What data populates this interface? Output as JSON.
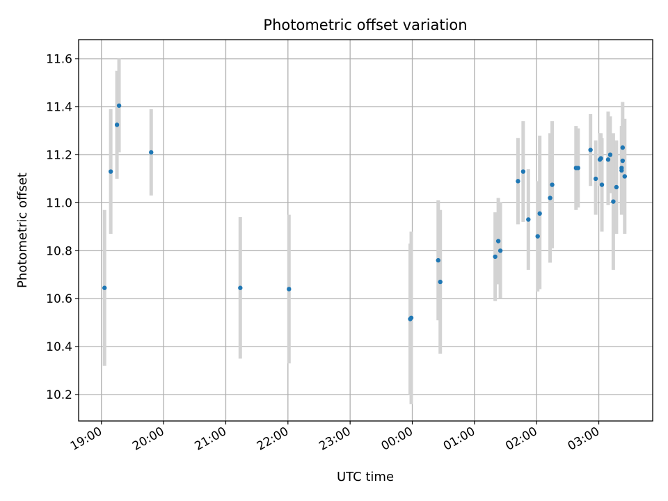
{
  "chart_data": {
    "type": "scatter",
    "title": "Photometric offset variation",
    "xlabel": "UTC time",
    "ylabel": "Photometric offset",
    "x_axis": "time",
    "x_range": [
      "18:38",
      "03:52"
    ],
    "ylim": [
      10.09,
      11.68
    ],
    "x_ticks": [
      "19:00",
      "20:00",
      "21:00",
      "22:00",
      "23:00",
      "00:00",
      "01:00",
      "02:00",
      "03:00"
    ],
    "y_ticks": [
      "10.2",
      "10.4",
      "10.6",
      "10.8",
      "11.0",
      "11.2",
      "11.4",
      "11.6"
    ],
    "grid": true,
    "colors": {
      "marker": "#1f77b4",
      "error_bar": "#d3d3d3",
      "grid": "#b0b0b0"
    },
    "points": [
      {
        "t": "19:03",
        "y": 10.645,
        "lo": 10.32,
        "hi": 10.97
      },
      {
        "t": "19:09",
        "y": 11.13,
        "lo": 10.87,
        "hi": 11.39
      },
      {
        "t": "19:15",
        "y": 11.325,
        "lo": 11.1,
        "hi": 11.55
      },
      {
        "t": "19:17",
        "y": 11.405,
        "lo": 11.21,
        "hi": 11.6
      },
      {
        "t": "19:48",
        "y": 11.21,
        "lo": 11.03,
        "hi": 11.39
      },
      {
        "t": "21:14",
        "y": 10.645,
        "lo": 10.35,
        "hi": 10.94
      },
      {
        "t": "22:01",
        "y": 10.64,
        "lo": 10.33,
        "hi": 10.95
      },
      {
        "t": "23:58",
        "y": 10.515,
        "lo": 10.2,
        "hi": 10.83
      },
      {
        "t": "23:59",
        "y": 10.52,
        "lo": 10.16,
        "hi": 10.88
      },
      {
        "t": "00:25",
        "y": 10.76,
        "lo": 10.51,
        "hi": 11.01
      },
      {
        "t": "00:27",
        "y": 10.67,
        "lo": 10.37,
        "hi": 10.97
      },
      {
        "t": "01:20",
        "y": 10.775,
        "lo": 10.59,
        "hi": 10.96
      },
      {
        "t": "01:23",
        "y": 10.84,
        "lo": 10.66,
        "hi": 11.02
      },
      {
        "t": "01:25",
        "y": 10.8,
        "lo": 10.6,
        "hi": 11.0
      },
      {
        "t": "01:42",
        "y": 11.09,
        "lo": 10.91,
        "hi": 11.27
      },
      {
        "t": "01:47",
        "y": 11.13,
        "lo": 10.92,
        "hi": 11.34
      },
      {
        "t": "01:52",
        "y": 10.93,
        "lo": 10.72,
        "hi": 11.14
      },
      {
        "t": "02:01",
        "y": 10.86,
        "lo": 10.63,
        "hi": 11.09
      },
      {
        "t": "02:03",
        "y": 10.955,
        "lo": 10.64,
        "hi": 11.28
      },
      {
        "t": "02:13",
        "y": 11.02,
        "lo": 10.75,
        "hi": 11.29
      },
      {
        "t": "02:15",
        "y": 11.075,
        "lo": 10.81,
        "hi": 11.34
      },
      {
        "t": "02:38",
        "y": 11.145,
        "lo": 10.97,
        "hi": 11.32
      },
      {
        "t": "02:40",
        "y": 11.145,
        "lo": 10.98,
        "hi": 11.31
      },
      {
        "t": "02:52",
        "y": 11.22,
        "lo": 11.07,
        "hi": 11.37
      },
      {
        "t": "02:57",
        "y": 11.1,
        "lo": 10.95,
        "hi": 11.26
      },
      {
        "t": "03:01",
        "y": 11.18,
        "lo": 11.07,
        "hi": 11.29
      },
      {
        "t": "03:02",
        "y": 11.185,
        "lo": 11.08,
        "hi": 11.29
      },
      {
        "t": "03:03",
        "y": 11.075,
        "lo": 10.88,
        "hi": 11.27
      },
      {
        "t": "03:09",
        "y": 11.18,
        "lo": 10.99,
        "hi": 11.38
      },
      {
        "t": "03:11",
        "y": 11.2,
        "lo": 11.04,
        "hi": 11.36
      },
      {
        "t": "03:14",
        "y": 11.005,
        "lo": 10.72,
        "hi": 11.29
      },
      {
        "t": "03:17",
        "y": 11.065,
        "lo": 10.87,
        "hi": 11.26
      },
      {
        "t": "03:22",
        "y": 11.135,
        "lo": 10.95,
        "hi": 11.32
      },
      {
        "t": "03:22",
        "y": 11.145,
        "lo": 10.97,
        "hi": 11.32
      },
      {
        "t": "03:23",
        "y": 11.23,
        "lo": 11.04,
        "hi": 11.42
      },
      {
        "t": "03:23",
        "y": 11.175,
        "lo": 11.0,
        "hi": 11.35
      },
      {
        "t": "03:25",
        "y": 11.11,
        "lo": 10.87,
        "hi": 11.35
      }
    ]
  }
}
